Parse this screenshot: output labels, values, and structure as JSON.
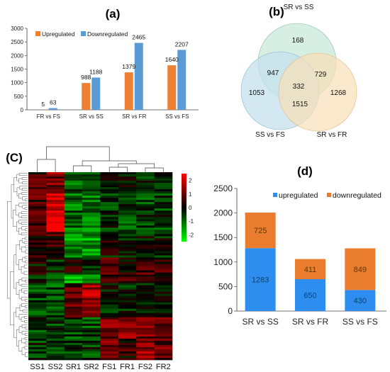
{
  "panels": {
    "a": "(a)",
    "b": "(b)",
    "c": "(C)",
    "d": "(d)"
  },
  "chart_data": [
    {
      "type": "bar",
      "panel": "a",
      "categories": [
        "FR vs FS",
        "SR vs SS",
        "SR vs FR",
        "SS vs FS"
      ],
      "series": [
        {
          "name": "Upregulated",
          "values": [
            5,
            988,
            1379,
            1640
          ]
        },
        {
          "name": "Downregulated",
          "values": [
            63,
            1188,
            2465,
            2207
          ]
        }
      ],
      "ylim": [
        0,
        3000
      ],
      "yticks": [
        0,
        500,
        1000,
        1500,
        2000,
        2500,
        3000
      ],
      "legend": "top-left",
      "grid": false
    },
    {
      "type": "venn",
      "panel": "b",
      "sets": [
        "SR vs SS",
        "SS vs FS",
        "SR vs FR"
      ],
      "regions": [
        {
          "sets": [
            "SR vs SS"
          ],
          "value": 168
        },
        {
          "sets": [
            "SS vs FS"
          ],
          "value": 1053
        },
        {
          "sets": [
            "SR vs FR"
          ],
          "value": 1268
        },
        {
          "sets": [
            "SR vs SS",
            "SS vs FS"
          ],
          "value": 947
        },
        {
          "sets": [
            "SR vs SS",
            "SR vs FR"
          ],
          "value": 729
        },
        {
          "sets": [
            "SS vs FS",
            "SR vs FR"
          ],
          "value": 1515
        },
        {
          "sets": [
            "SR vs SS",
            "SS vs FS",
            "SR vs FR"
          ],
          "value": 332
        }
      ]
    },
    {
      "type": "heatmap",
      "panel": "c",
      "columns": [
        "SS1",
        "SS2",
        "SR1",
        "SR2",
        "FS1",
        "FR1",
        "FS2",
        "FR2"
      ],
      "colorbar_ticks": [
        2,
        1,
        0,
        -1,
        -2
      ],
      "colorbar_range": [
        -2.5,
        2.5
      ],
      "colors": {
        "high": "#ff0000",
        "mid": "#000000",
        "low": "#00ff00"
      }
    },
    {
      "type": "bar",
      "stacked": true,
      "panel": "d",
      "categories": [
        "SR vs SS",
        "SR vs FR",
        "SS vs FS"
      ],
      "series": [
        {
          "name": "upregulated",
          "values": [
            1283,
            650,
            430
          ]
        },
        {
          "name": "downregulated",
          "values": [
            725,
            411,
            849
          ]
        }
      ],
      "ylim": [
        0,
        2500
      ],
      "yticks": [
        0,
        500,
        1000,
        1500,
        2000,
        2500
      ],
      "legend": "top",
      "grid": false
    }
  ],
  "colors": {
    "a_up": "#ef7f33",
    "a_down": "#5b9bd5",
    "d_up": "#2d8ef0",
    "d_down": "#ea7c2e",
    "venn_1": "#c9ead8",
    "venn_2": "#c4e0ec",
    "venn_3": "#f8dfb6"
  }
}
